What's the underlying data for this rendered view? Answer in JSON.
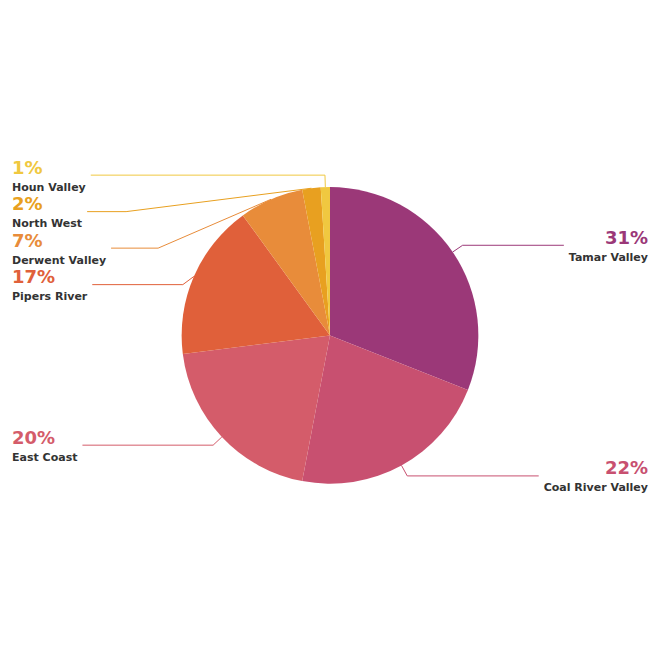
{
  "chart_data": {
    "type": "pie",
    "categories": [
      "Tamar Valley",
      "Coal River Valley",
      "East Coast",
      "Pipers River",
      "Derwent Valley",
      "North West",
      "Houn Valley"
    ],
    "values": [
      31,
      22,
      20,
      17,
      7,
      2,
      1
    ],
    "value_labels": [
      "31%",
      "22%",
      "20%",
      "17%",
      "7%",
      "2%",
      "1%"
    ],
    "colors": [
      "#9B3878",
      "#C85070",
      "#D45C6A",
      "#E0603A",
      "#E88C3A",
      "#E8A020",
      "#F0C840"
    ],
    "data_labels": true,
    "legend": false
  }
}
